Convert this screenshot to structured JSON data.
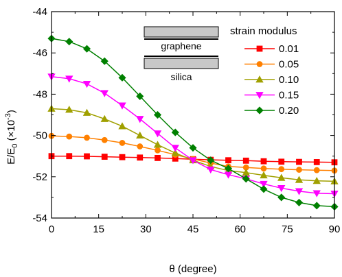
{
  "chart_data": {
    "type": "line",
    "xlabel": "θ (degree)",
    "ylabel_main": "E/E",
    "ylabel_sub": "0",
    "ylabel_tail": " (×10",
    "ylabel_sup": "-3",
    "ylabel_end": ")",
    "xlim": [
      0,
      90
    ],
    "ylim": [
      -54,
      -44
    ],
    "xticks": [
      0,
      15,
      30,
      45,
      60,
      75,
      90
    ],
    "yticks": [
      -44,
      -46,
      -48,
      -50,
      -52,
      -54
    ],
    "xtick_labels": [
      "0",
      "15",
      "30",
      "45",
      "60",
      "75",
      "90"
    ],
    "ytick_labels": [
      "-44",
      "-46",
      "-48",
      "-50",
      "-52",
      "-54"
    ],
    "legend_title": "strain modulus",
    "legend_position": "top-right",
    "inset_labels": [
      "graphene",
      "silica"
    ],
    "grid": false,
    "x": [
      0,
      5.625,
      11.25,
      16.875,
      22.5,
      28.125,
      33.75,
      39.375,
      45,
      50.625,
      56.25,
      61.875,
      67.5,
      73.125,
      78.75,
      84.375,
      90
    ],
    "series": [
      {
        "name": "0.01",
        "color": "#ff0000",
        "marker": "square",
        "values": [
          -51.0,
          -51.0,
          -51.01,
          -51.03,
          -51.05,
          -51.07,
          -51.09,
          -51.12,
          -51.15,
          -51.18,
          -51.2,
          -51.22,
          -51.25,
          -51.27,
          -51.28,
          -51.29,
          -51.3
        ]
      },
      {
        "name": "0.05",
        "color": "#ff8000",
        "marker": "circle",
        "values": [
          -50.02,
          -50.05,
          -50.11,
          -50.22,
          -50.36,
          -50.53,
          -50.72,
          -50.93,
          -51.14,
          -51.34,
          -51.5,
          -51.55,
          -51.6,
          -51.63,
          -51.66,
          -51.68,
          -51.7
        ]
      },
      {
        "name": "0.10",
        "color": "#a0a000",
        "marker": "triangle",
        "values": [
          -48.7,
          -48.75,
          -48.9,
          -49.2,
          -49.55,
          -50.0,
          -50.45,
          -50.85,
          -51.2,
          -51.5,
          -51.7,
          -51.8,
          -51.93,
          -52.05,
          -52.15,
          -52.2,
          -52.22
        ]
      },
      {
        "name": "0.15",
        "color": "#ff00ff",
        "marker": "triangle-down",
        "values": [
          -47.15,
          -47.25,
          -47.5,
          -47.95,
          -48.55,
          -49.2,
          -49.9,
          -50.6,
          -51.2,
          -51.65,
          -51.9,
          -52.1,
          -52.35,
          -52.55,
          -52.7,
          -52.8,
          -52.82
        ]
      },
      {
        "name": "0.20",
        "color": "#008000",
        "marker": "diamond",
        "values": [
          -45.3,
          -45.45,
          -45.8,
          -46.4,
          -47.2,
          -48.1,
          -49.0,
          -49.85,
          -50.6,
          -51.2,
          -51.6,
          -52.1,
          -52.6,
          -53.0,
          -53.25,
          -53.4,
          -53.45
        ]
      }
    ]
  }
}
